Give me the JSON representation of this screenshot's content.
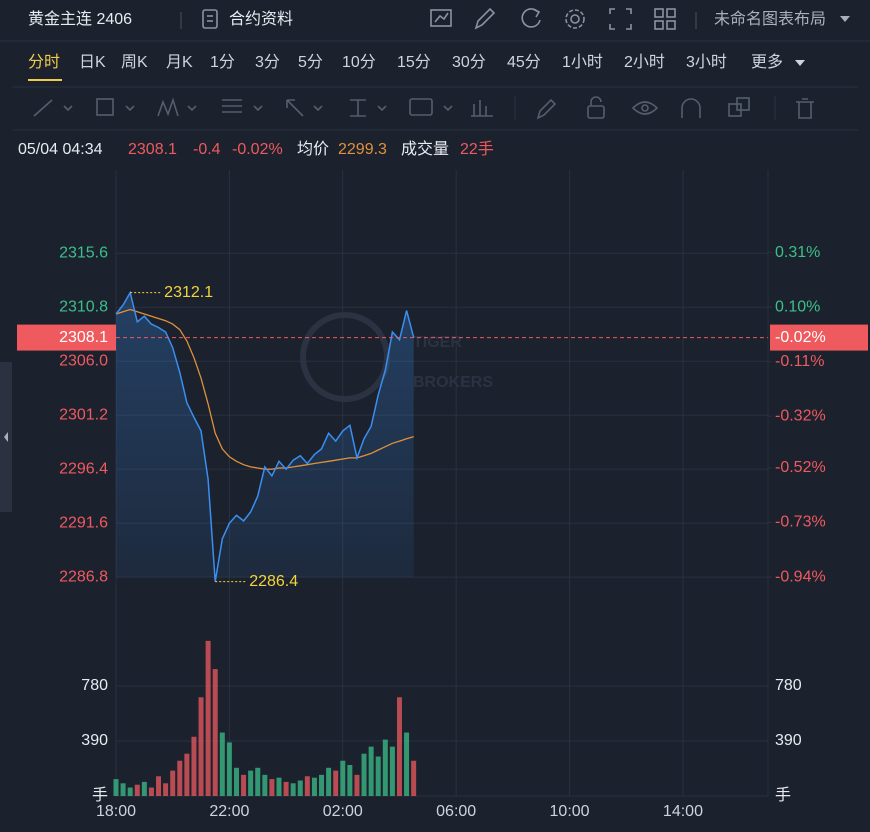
{
  "header": {
    "symbol": "黄金主连 2406",
    "contract_info": "合约资料",
    "layout_name": "未命名图表布局"
  },
  "timeframes": [
    "分时",
    "日K",
    "周K",
    "月K",
    "1分",
    "3分",
    "5分",
    "10分",
    "15分",
    "30分",
    "45分",
    "1小时",
    "2小时",
    "3小时",
    "更多"
  ],
  "active_timeframe": 0,
  "info": {
    "datetime": "05/04 04:34",
    "price": 2308.1,
    "change": -0.4,
    "change_pct": "-0.02%",
    "avg_price": 2299.3,
    "volume_label": "成交量",
    "volume": "22手"
  },
  "watermark": [
    "TIGER",
    "BROKERS"
  ],
  "chart_data": [
    {
      "type": "line",
      "x": [
        0,
        0.25,
        0.5,
        0.75,
        1,
        1.25,
        1.5,
        1.75,
        2,
        2.25,
        2.5,
        2.75,
        3,
        3.25,
        3.5,
        3.75,
        4,
        4.25,
        4.5,
        4.75,
        5,
        5.25,
        5.5,
        5.75,
        6,
        6.25,
        6.5,
        6.75,
        7,
        7.25,
        7.5,
        7.75,
        8,
        8.25,
        8.5,
        8.75,
        9,
        9.25,
        9.5,
        9.75,
        10,
        10.25,
        10.5
      ],
      "xlim": [
        0,
        23
      ],
      "ylim": [
        2282.1,
        2323.0
      ],
      "yticks": [
        2315.6,
        2310.8,
        {
          "value": 2306,
          "label": "2306.0"
        },
        2301.2,
        2296.4,
        2291.6,
        2286.8
      ],
      "y2lim": [
        -1.144,
        0.628
      ],
      "y2ticks": [
        {
          "value": 0.31,
          "label": "0.31%"
        },
        {
          "value": 0.1,
          "label": "0.10%"
        },
        {
          "value": -0.11,
          "label": "-0.11%"
        },
        {
          "value": -0.32,
          "label": "-0.32%"
        },
        {
          "value": -0.52,
          "label": "-0.52%"
        },
        {
          "value": -0.73,
          "label": "-0.73%"
        },
        {
          "value": -0.94,
          "label": "-0.94%"
        }
      ],
      "up_color": "#3cc08a",
      "down_color": "#ef5a5f",
      "series": [
        {
          "color": "#3a8ff0",
          "values": [
            2310.2,
            2311.0,
            2312.1,
            2309.5,
            2310.0,
            2309.3,
            2309.0,
            2308.6,
            2307.2,
            2305.0,
            2302.3,
            2301.0,
            2299.8,
            2295.5,
            2286.4,
            2290.2,
            2291.6,
            2292.3,
            2291.8,
            2292.6,
            2294.0,
            2296.6,
            2295.8,
            2297.1,
            2296.4,
            2297.2,
            2297.6,
            2296.9,
            2297.7,
            2298.2,
            2299.6,
            2298.9,
            2299.8,
            2300.3,
            2297.4,
            2299.1,
            2300.2,
            2303.0,
            2305.2,
            2308.6,
            2307.9,
            2310.5,
            2308.1
          ]
        },
        {
          "name": "均价",
          "color": "#e0913a",
          "values": [
            2310.2,
            2310.4,
            2310.6,
            2310.4,
            2310.2,
            2310.0,
            2309.8,
            2309.6,
            2309.3,
            2308.8,
            2307.8,
            2306.3,
            2304.5,
            2302.2,
            2299.6,
            2298.2,
            2297.5,
            2297.1,
            2296.8,
            2296.6,
            2296.5,
            2296.4,
            2296.4,
            2296.5,
            2296.5,
            2296.6,
            2296.7,
            2296.8,
            2296.9,
            2297.0,
            2297.1,
            2297.2,
            2297.3,
            2297.4,
            2297.4,
            2297.6,
            2297.8,
            2298.1,
            2298.4,
            2298.7,
            2298.9,
            2299.1,
            2299.3
          ]
        }
      ],
      "annotations": [
        {
          "x": 0.5,
          "value": 2312.1
        },
        {
          "x": 3.5,
          "value": 2286.4
        }
      ],
      "annotation_color": "#f2d43d"
    },
    {
      "type": "bar",
      "x": [
        0,
        0.25,
        0.5,
        0.75,
        1,
        1.25,
        1.5,
        1.75,
        2,
        2.25,
        2.5,
        2.75,
        3,
        3.25,
        3.5,
        3.75,
        4,
        4.25,
        4.5,
        4.75,
        5,
        5.25,
        5.5,
        5.75,
        6,
        6.25,
        6.5,
        6.75,
        7,
        7.25,
        7.5,
        7.75,
        8,
        8.25,
        8.5,
        8.75,
        9,
        9.25,
        9.5,
        9.75,
        10,
        10.25,
        10.5
      ],
      "xlim": [
        0,
        23
      ],
      "xticks": [
        {
          "value": 0,
          "label": "18:00"
        },
        {
          "value": 4,
          "label": "22:00"
        },
        {
          "value": 8,
          "label": "02:00"
        },
        {
          "value": 12,
          "label": "06:00"
        },
        {
          "value": 16,
          "label": "10:00"
        },
        {
          "value": 20,
          "label": "14:00"
        }
      ],
      "ylim": [
        0,
        1177
      ],
      "yticks": [
        780,
        390
      ],
      "unit": "手",
      "values": [
        120,
        90,
        60,
        80,
        100,
        60,
        140,
        90,
        180,
        250,
        300,
        420,
        700,
        1100,
        900,
        450,
        380,
        200,
        150,
        180,
        200,
        150,
        120,
        130,
        100,
        90,
        110,
        140,
        130,
        150,
        200,
        180,
        250,
        220,
        150,
        300,
        350,
        280,
        400,
        350,
        700,
        450,
        250
      ]
    }
  ]
}
